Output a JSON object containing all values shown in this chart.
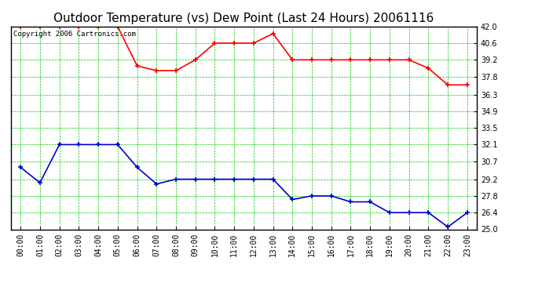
{
  "title": "Outdoor Temperature (vs) Dew Point (Last 24 Hours) 20061116",
  "copyright_text": "Copyright 2006 Cartronics.com",
  "x_labels": [
    "00:00",
    "01:00",
    "02:00",
    "03:00",
    "04:00",
    "05:00",
    "06:00",
    "07:00",
    "08:00",
    "09:00",
    "10:00",
    "11:00",
    "12:00",
    "13:00",
    "14:00",
    "15:00",
    "16:00",
    "17:00",
    "18:00",
    "19:00",
    "20:00",
    "21:00",
    "22:00",
    "23:00"
  ],
  "temp_data": [
    42.0,
    42.0,
    42.0,
    42.0,
    42.0,
    42.0,
    38.7,
    38.3,
    38.3,
    39.2,
    40.6,
    40.6,
    40.6,
    41.4,
    39.2,
    39.2,
    39.2,
    39.2,
    39.2,
    39.2,
    39.2,
    38.5,
    37.1,
    37.1
  ],
  "dew_data": [
    30.2,
    28.9,
    32.1,
    32.1,
    32.1,
    32.1,
    30.2,
    28.8,
    29.2,
    29.2,
    29.2,
    29.2,
    29.2,
    29.2,
    27.5,
    27.8,
    27.8,
    27.3,
    27.3,
    26.4,
    26.4,
    26.4,
    25.2,
    26.4
  ],
  "temp_color": "#ff0000",
  "dew_color": "#0000cc",
  "grid_color": "#00cc00",
  "bg_color": "#ffffff",
  "plot_bg_color": "#ffffff",
  "yticks": [
    25.0,
    26.4,
    27.8,
    29.2,
    30.7,
    32.1,
    33.5,
    34.9,
    36.3,
    37.8,
    39.2,
    40.6,
    42.0
  ],
  "ymin": 25.0,
  "ymax": 42.0,
  "marker": "+",
  "markersize": 5,
  "linewidth": 1.2,
  "title_fontsize": 11,
  "tick_fontsize": 7,
  "copyright_fontsize": 6.5
}
